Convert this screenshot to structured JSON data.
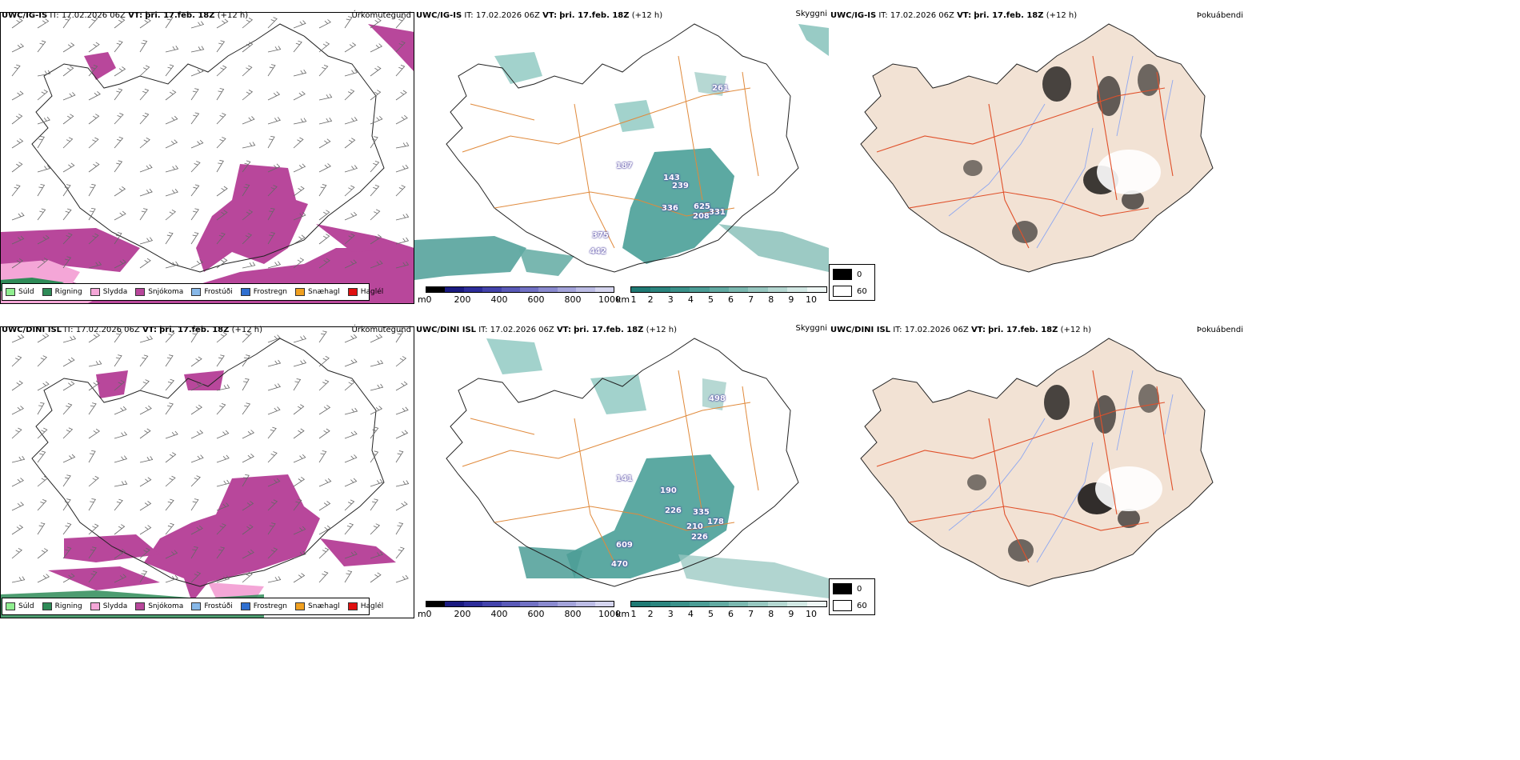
{
  "rows": [
    {
      "model": "UWC/IG-IS",
      "it_label": "IT:",
      "it_value": "17.02.2026 06Z",
      "vt_label": "VT:",
      "vt_value": "þri. 17.feb. 18Z",
      "lead": "(+12 h)",
      "peaks": [
        "187",
        "143",
        "239",
        "336",
        "625",
        "208",
        "331",
        "375",
        "442",
        "261"
      ]
    },
    {
      "model": "UWC/DINI ISL",
      "it_label": "IT:",
      "it_value": "17.02.2026 06Z",
      "vt_label": "VT:",
      "vt_value": "þri. 17.feb. 18Z",
      "lead": "(+12 h)",
      "peaks": [
        "141",
        "190",
        "226",
        "335",
        "210",
        "178",
        "226",
        "609",
        "470",
        "498"
      ]
    }
  ],
  "titles": {
    "precip": "Úrkomutegund",
    "visibility": "Skyggni",
    "fog": "Þokuábendi"
  },
  "precip_legend": [
    {
      "label": "Súld",
      "color": "#90ee90"
    },
    {
      "label": "Rigning",
      "color": "#2e8b57"
    },
    {
      "label": "Slydda",
      "color": "#f4a6d7"
    },
    {
      "label": "Snjókoma",
      "color": "#b8479b"
    },
    {
      "label": "Frostúði",
      "color": "#87b8e8"
    },
    {
      "label": "Frostregn",
      "color": "#2f6fd0"
    },
    {
      "label": "Snæhagl",
      "color": "#f0a020"
    },
    {
      "label": "Haglél",
      "color": "#e01010"
    }
  ],
  "cloud_base_bar": {
    "unit": "m",
    "ticks": [
      "0",
      "200",
      "400",
      "600",
      "800",
      "1000"
    ],
    "colors": [
      "#000000",
      "#1a1a80",
      "#2d2d9a",
      "#4343ab",
      "#5a5ab8",
      "#7171c4",
      "#8a8acf",
      "#a3a3da",
      "#bcbce5",
      "#d5d5ef"
    ]
  },
  "visibility_bar": {
    "unit": "km",
    "ticks": [
      "1",
      "2",
      "3",
      "4",
      "5",
      "6",
      "7",
      "8",
      "9",
      "10"
    ],
    "colors": [
      "#1f7a74",
      "#2b857f",
      "#3a918a",
      "#4c9d96",
      "#62aaa2",
      "#7bb8b0",
      "#97c7c0",
      "#b4d7d1",
      "#d2e8e4",
      "#eef7f5"
    ]
  },
  "fog_legend": [
    {
      "value": "0",
      "color": "#000000"
    },
    {
      "value": "60",
      "color": "#ffffff"
    }
  ],
  "colors": {
    "snow": "#b8479b",
    "sleet": "#f4a6d7",
    "rain": "#2e8b57",
    "vis": "#3f9a92",
    "roads_orange": "#e08a3c",
    "roads_red": "#e0502a",
    "land_fog": "#f2e2d4",
    "rivers": "#8fa8f0"
  }
}
